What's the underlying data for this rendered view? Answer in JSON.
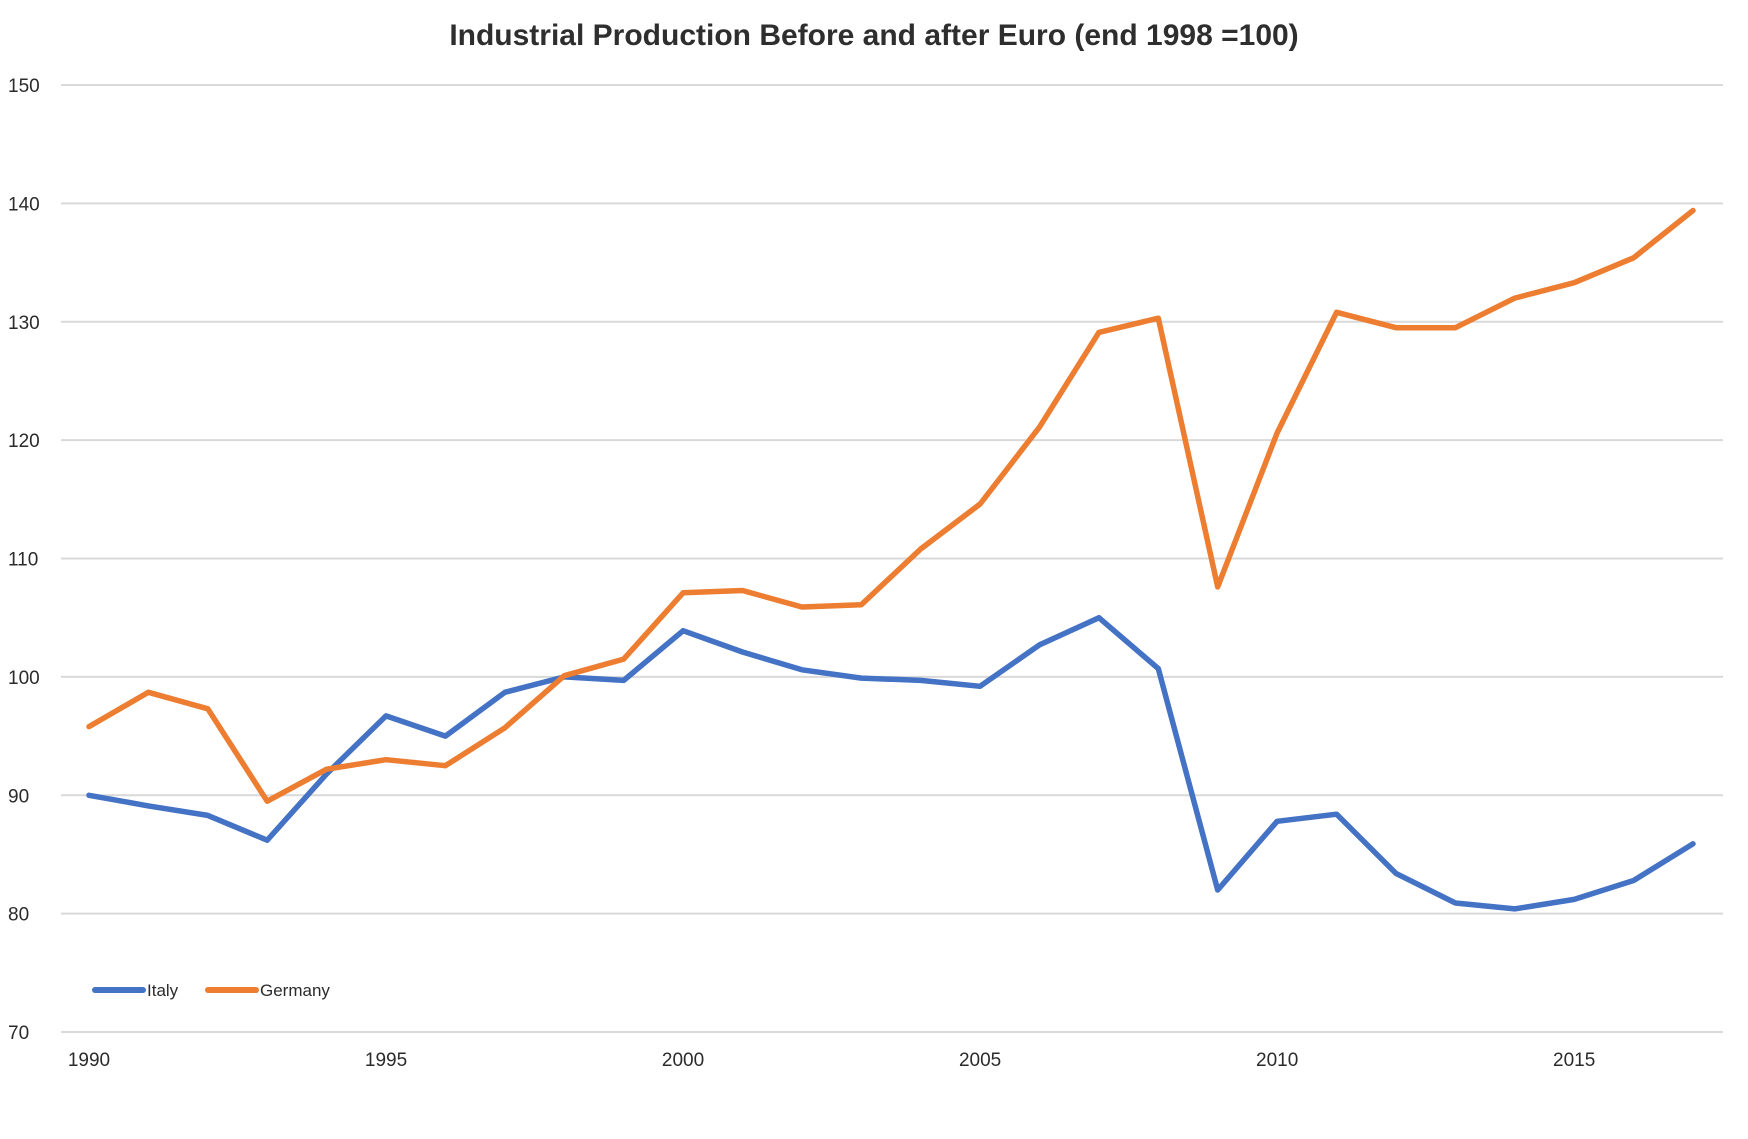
{
  "chart_data": {
    "type": "line",
    "title": "Industrial Production Before and after Euro (end 1998 =100)",
    "xlabel": "",
    "ylabel": "",
    "x": [
      1990,
      1991,
      1992,
      1993,
      1994,
      1995,
      1996,
      1997,
      1998,
      1999,
      2000,
      2001,
      2002,
      2003,
      2004,
      2005,
      2006,
      2007,
      2008,
      2009,
      2010,
      2011,
      2012,
      2013,
      2014,
      2015,
      2016,
      2017
    ],
    "xticks": [
      "1990",
      "1995",
      "2000",
      "2005",
      "2010",
      "2015"
    ],
    "xtick_values": [
      1990,
      1995,
      2000,
      2005,
      2010,
      2015
    ],
    "yticks": [
      "70",
      "80",
      "90",
      "100",
      "110",
      "120",
      "130",
      "140",
      "150"
    ],
    "ytick_values": [
      70,
      80,
      90,
      100,
      110,
      120,
      130,
      140,
      150
    ],
    "ylim": [
      70,
      150
    ],
    "xlim": [
      1990,
      2017
    ],
    "grid": "horizontal",
    "legend_position": "bottom-left",
    "series": [
      {
        "name": "Italy",
        "color": "#4472c4",
        "values": [
          90.0,
          89.1,
          88.3,
          86.2,
          91.8,
          96.7,
          95.0,
          98.7,
          100.0,
          99.7,
          103.9,
          102.1,
          100.6,
          99.9,
          99.7,
          99.2,
          102.7,
          105.0,
          100.7,
          82.0,
          87.8,
          88.4,
          83.4,
          80.9,
          80.4,
          81.2,
          82.8,
          85.9
        ]
      },
      {
        "name": "Germany",
        "color": "#ed7d31",
        "values": [
          95.8,
          98.7,
          97.3,
          89.5,
          92.2,
          93.0,
          92.5,
          95.7,
          100.1,
          101.5,
          107.1,
          107.3,
          105.9,
          106.1,
          110.8,
          114.6,
          121.1,
          129.1,
          130.3,
          107.6,
          120.6,
          130.8,
          129.5,
          129.5,
          132.0,
          133.3,
          135.4,
          139.4
        ]
      }
    ]
  }
}
